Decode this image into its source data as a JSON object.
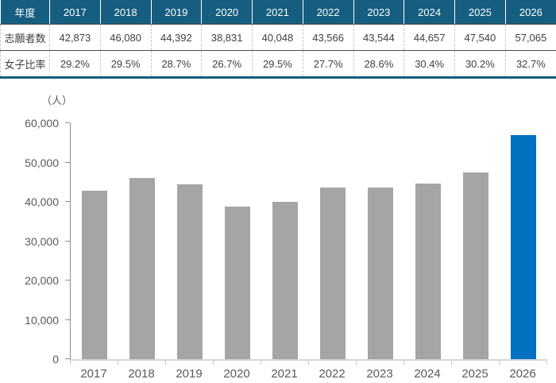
{
  "colors": {
    "header_bg": "#155e7f",
    "bar_default": "#a5a5a5",
    "bar_highlight": "#0070c1"
  },
  "table": {
    "header_row_label": "年度",
    "years": [
      "2017",
      "2018",
      "2019",
      "2020",
      "2021",
      "2022",
      "2023",
      "2024",
      "2025",
      "2026"
    ],
    "rows": [
      {
        "key": "applicants",
        "label": "志願者数",
        "values": [
          "42,873",
          "46,080",
          "44,392",
          "38,831",
          "40,048",
          "43,566",
          "43,544",
          "44,657",
          "47,540",
          "57,065"
        ]
      },
      {
        "key": "female-ratio",
        "label": "女子比率",
        "values": [
          "29.2%",
          "29.5%",
          "28.7%",
          "26.7%",
          "29.5%",
          "27.7%",
          "28.6%",
          "30.4%",
          "30.2%",
          "32.7%"
        ]
      }
    ]
  },
  "chart_data": {
    "type": "bar",
    "title": "",
    "unit_label": "（人）",
    "categories": [
      "2017",
      "2018",
      "2019",
      "2020",
      "2021",
      "2022",
      "2023",
      "2024",
      "2025",
      "2026"
    ],
    "values": [
      42873,
      46080,
      44392,
      38831,
      40048,
      43566,
      43544,
      44657,
      47540,
      57065
    ],
    "highlight_category": "2026",
    "xlabel": "",
    "ylabel": "（人）",
    "ylim": [
      0,
      60000
    ],
    "ytick_step": 10000,
    "ytick_labels": [
      "0",
      "10,000",
      "20,000",
      "30,000",
      "40,000",
      "50,000",
      "60,000"
    ],
    "grid": false,
    "legend": "none"
  }
}
